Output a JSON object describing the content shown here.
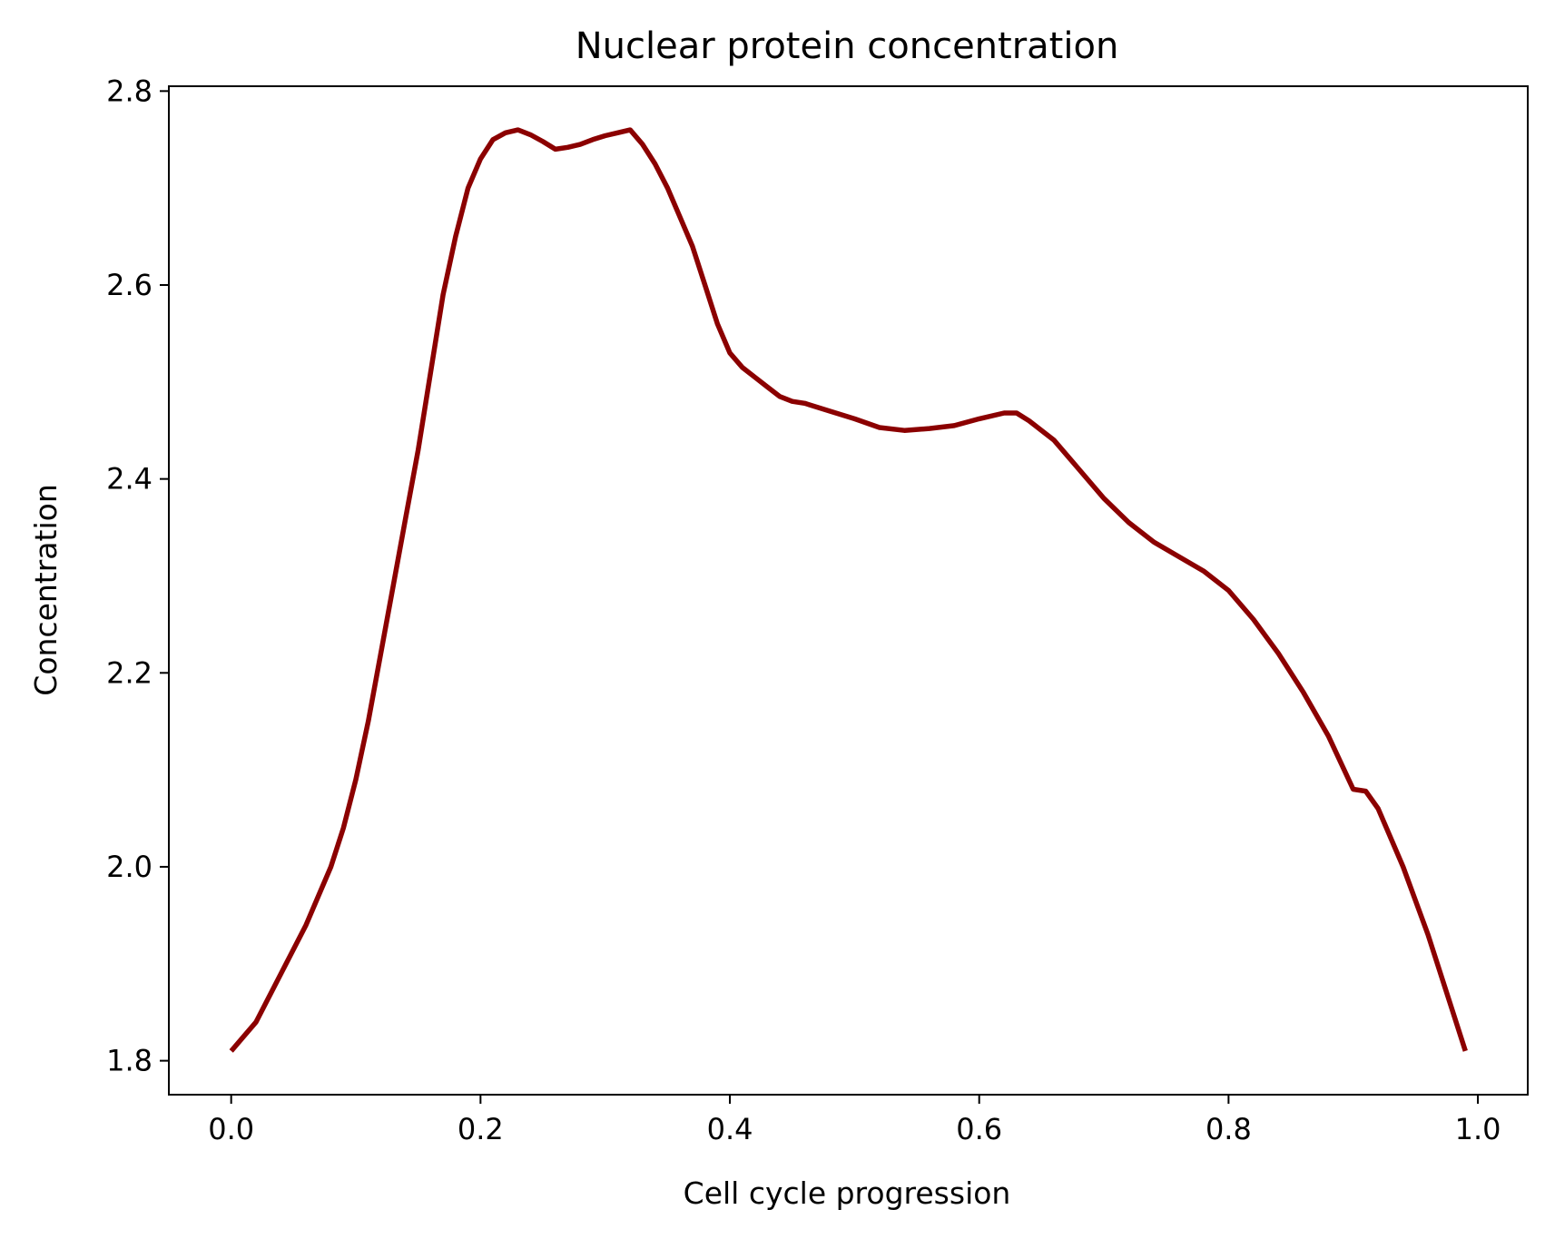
{
  "chart_data": {
    "type": "line",
    "title": "Nuclear protein concentration",
    "xlabel": "Cell cycle progression",
    "ylabel": "Concentration",
    "xlim": [
      -0.05,
      1.04
    ],
    "ylim": [
      1.765,
      2.805
    ],
    "grid": false,
    "legend": "none",
    "x_ticks": [
      {
        "value": 0.0,
        "label": "0.0"
      },
      {
        "value": 0.2,
        "label": "0.2"
      },
      {
        "value": 0.4,
        "label": "0.4"
      },
      {
        "value": 0.6,
        "label": "0.6"
      },
      {
        "value": 0.8,
        "label": "0.8"
      },
      {
        "value": 1.0,
        "label": "1.0"
      }
    ],
    "y_ticks": [
      {
        "value": 1.8,
        "label": "1.8"
      },
      {
        "value": 2.0,
        "label": "2.0"
      },
      {
        "value": 2.2,
        "label": "2.2"
      },
      {
        "value": 2.4,
        "label": "2.4"
      },
      {
        "value": 2.6,
        "label": "2.6"
      },
      {
        "value": 2.8,
        "label": "2.8"
      }
    ],
    "series": [
      {
        "color": "#8b0000",
        "x": [
          0.0,
          0.02,
          0.04,
          0.06,
          0.07,
          0.08,
          0.09,
          0.1,
          0.11,
          0.12,
          0.13,
          0.14,
          0.15,
          0.16,
          0.17,
          0.18,
          0.19,
          0.2,
          0.21,
          0.22,
          0.23,
          0.24,
          0.25,
          0.26,
          0.27,
          0.28,
          0.29,
          0.3,
          0.31,
          0.32,
          0.33,
          0.34,
          0.35,
          0.36,
          0.37,
          0.38,
          0.39,
          0.4,
          0.41,
          0.42,
          0.43,
          0.44,
          0.45,
          0.46,
          0.48,
          0.5,
          0.52,
          0.54,
          0.56,
          0.58,
          0.6,
          0.62,
          0.63,
          0.64,
          0.66,
          0.68,
          0.7,
          0.72,
          0.74,
          0.76,
          0.78,
          0.8,
          0.82,
          0.84,
          0.86,
          0.88,
          0.9,
          0.91,
          0.92,
          0.94,
          0.96,
          0.98,
          0.99
        ],
        "y": [
          1.81,
          1.84,
          1.89,
          1.94,
          1.97,
          2.0,
          2.04,
          2.09,
          2.15,
          2.22,
          2.29,
          2.36,
          2.43,
          2.51,
          2.59,
          2.65,
          2.7,
          2.73,
          2.75,
          2.757,
          2.76,
          2.755,
          2.748,
          2.74,
          2.742,
          2.745,
          2.75,
          2.754,
          2.757,
          2.76,
          2.745,
          2.725,
          2.7,
          2.67,
          2.64,
          2.6,
          2.56,
          2.53,
          2.515,
          2.505,
          2.495,
          2.485,
          2.48,
          2.478,
          2.47,
          2.462,
          2.453,
          2.45,
          2.452,
          2.455,
          2.462,
          2.468,
          2.468,
          2.46,
          2.44,
          2.41,
          2.38,
          2.355,
          2.335,
          2.32,
          2.305,
          2.285,
          2.255,
          2.22,
          2.18,
          2.135,
          2.08,
          2.078,
          2.06,
          2.0,
          1.93,
          1.85,
          1.81
        ]
      }
    ]
  }
}
